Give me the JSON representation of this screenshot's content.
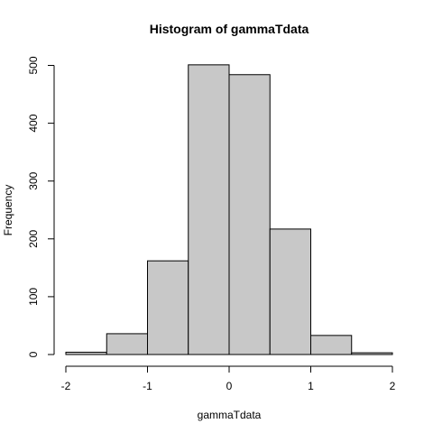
{
  "chart_data": {
    "type": "bar",
    "title": "Histogram of gammaTdata",
    "xlabel": "gammaTdata",
    "ylabel": "Frequency",
    "bins": [
      {
        "from": -2.0,
        "to": -1.5,
        "count": 4
      },
      {
        "from": -1.5,
        "to": -1.0,
        "count": 36
      },
      {
        "from": -1.0,
        "to": -0.5,
        "count": 162
      },
      {
        "from": -0.5,
        "to": 0.0,
        "count": 501
      },
      {
        "from": 0.0,
        "to": 0.5,
        "count": 484
      },
      {
        "from": 0.5,
        "to": 1.0,
        "count": 217
      },
      {
        "from": 1.0,
        "to": 1.5,
        "count": 33
      },
      {
        "from": 1.5,
        "to": 2.0,
        "count": 3
      }
    ],
    "xlim": [
      -2,
      2
    ],
    "ylim": [
      0,
      500
    ],
    "x_ticks": [
      -2,
      -1,
      0,
      1,
      2
    ],
    "y_ticks": [
      0,
      100,
      200,
      300,
      400,
      500
    ],
    "grid": false,
    "legend": "none",
    "colors": {
      "bar_fill": "#c8c8c8",
      "bar_stroke": "#000000"
    }
  }
}
